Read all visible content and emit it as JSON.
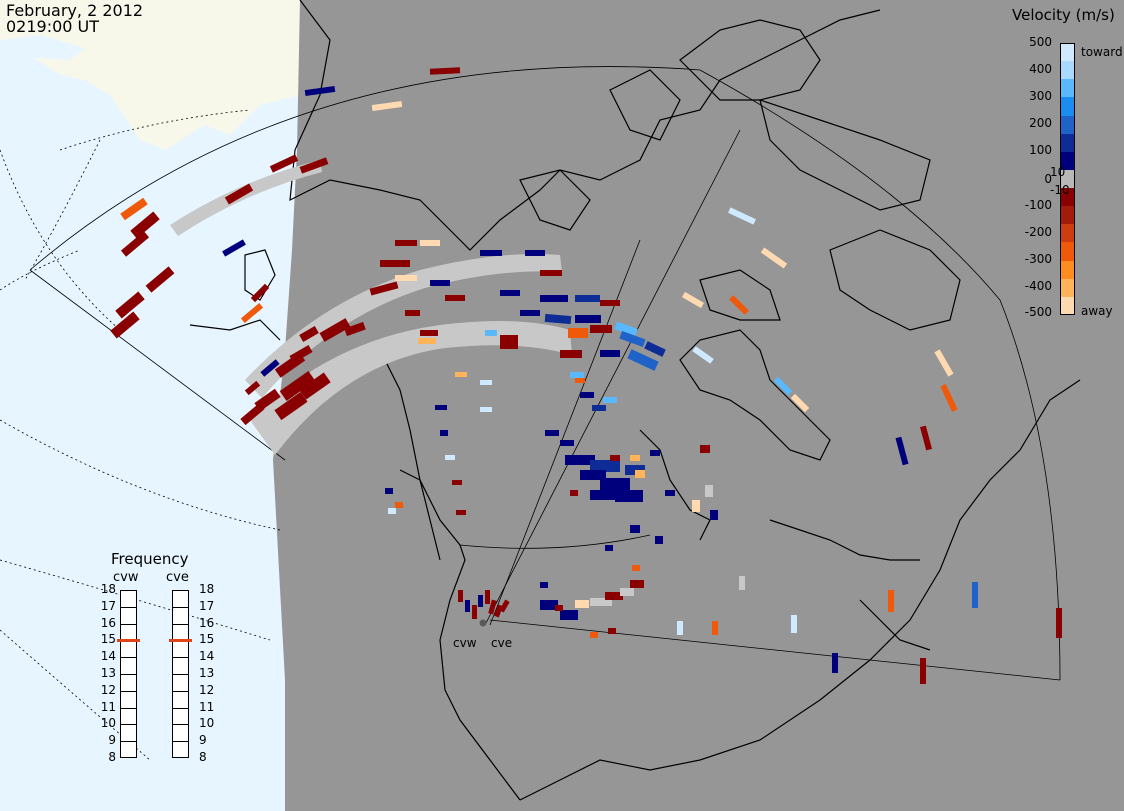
{
  "header": {
    "date": "February, 2 2012",
    "time": "0219:00 UT"
  },
  "colorbar": {
    "title": "Velocity (m/s)",
    "ticks": [
      "500",
      "400",
      "300",
      "200",
      "100",
      "10",
      "0",
      "-10",
      "-100",
      "-200",
      "-300",
      "-400",
      "-500"
    ],
    "toward_label": "toward",
    "away_label": "away",
    "colors": [
      "#cfeaff",
      "#a9d9ff",
      "#5ab8ff",
      "#1a8ef0",
      "#1f63c9",
      "#0e2c96",
      "#00007c",
      "#b8b8b8",
      "#8a0000",
      "#a31b0b",
      "#cc3d12",
      "#ef5a0a",
      "#ff8c1f",
      "#ffb45a",
      "#ffd9b0"
    ]
  },
  "frequency": {
    "title": "Frequency",
    "radars": [
      "cvw",
      "cve"
    ],
    "scale": [
      "18",
      "17",
      "16",
      "15",
      "14",
      "13",
      "12",
      "11",
      "10",
      "9",
      "8"
    ],
    "cvw_value": 15,
    "cve_value": 15
  },
  "radar_sites": [
    {
      "name": "cvw"
    },
    {
      "name": "cve"
    }
  ],
  "colors": {
    "land_day": "#f8f8ea",
    "ocean_day": "#e6f5ff",
    "night": "#969696",
    "ground_scatter": "#c8c8c8"
  }
}
